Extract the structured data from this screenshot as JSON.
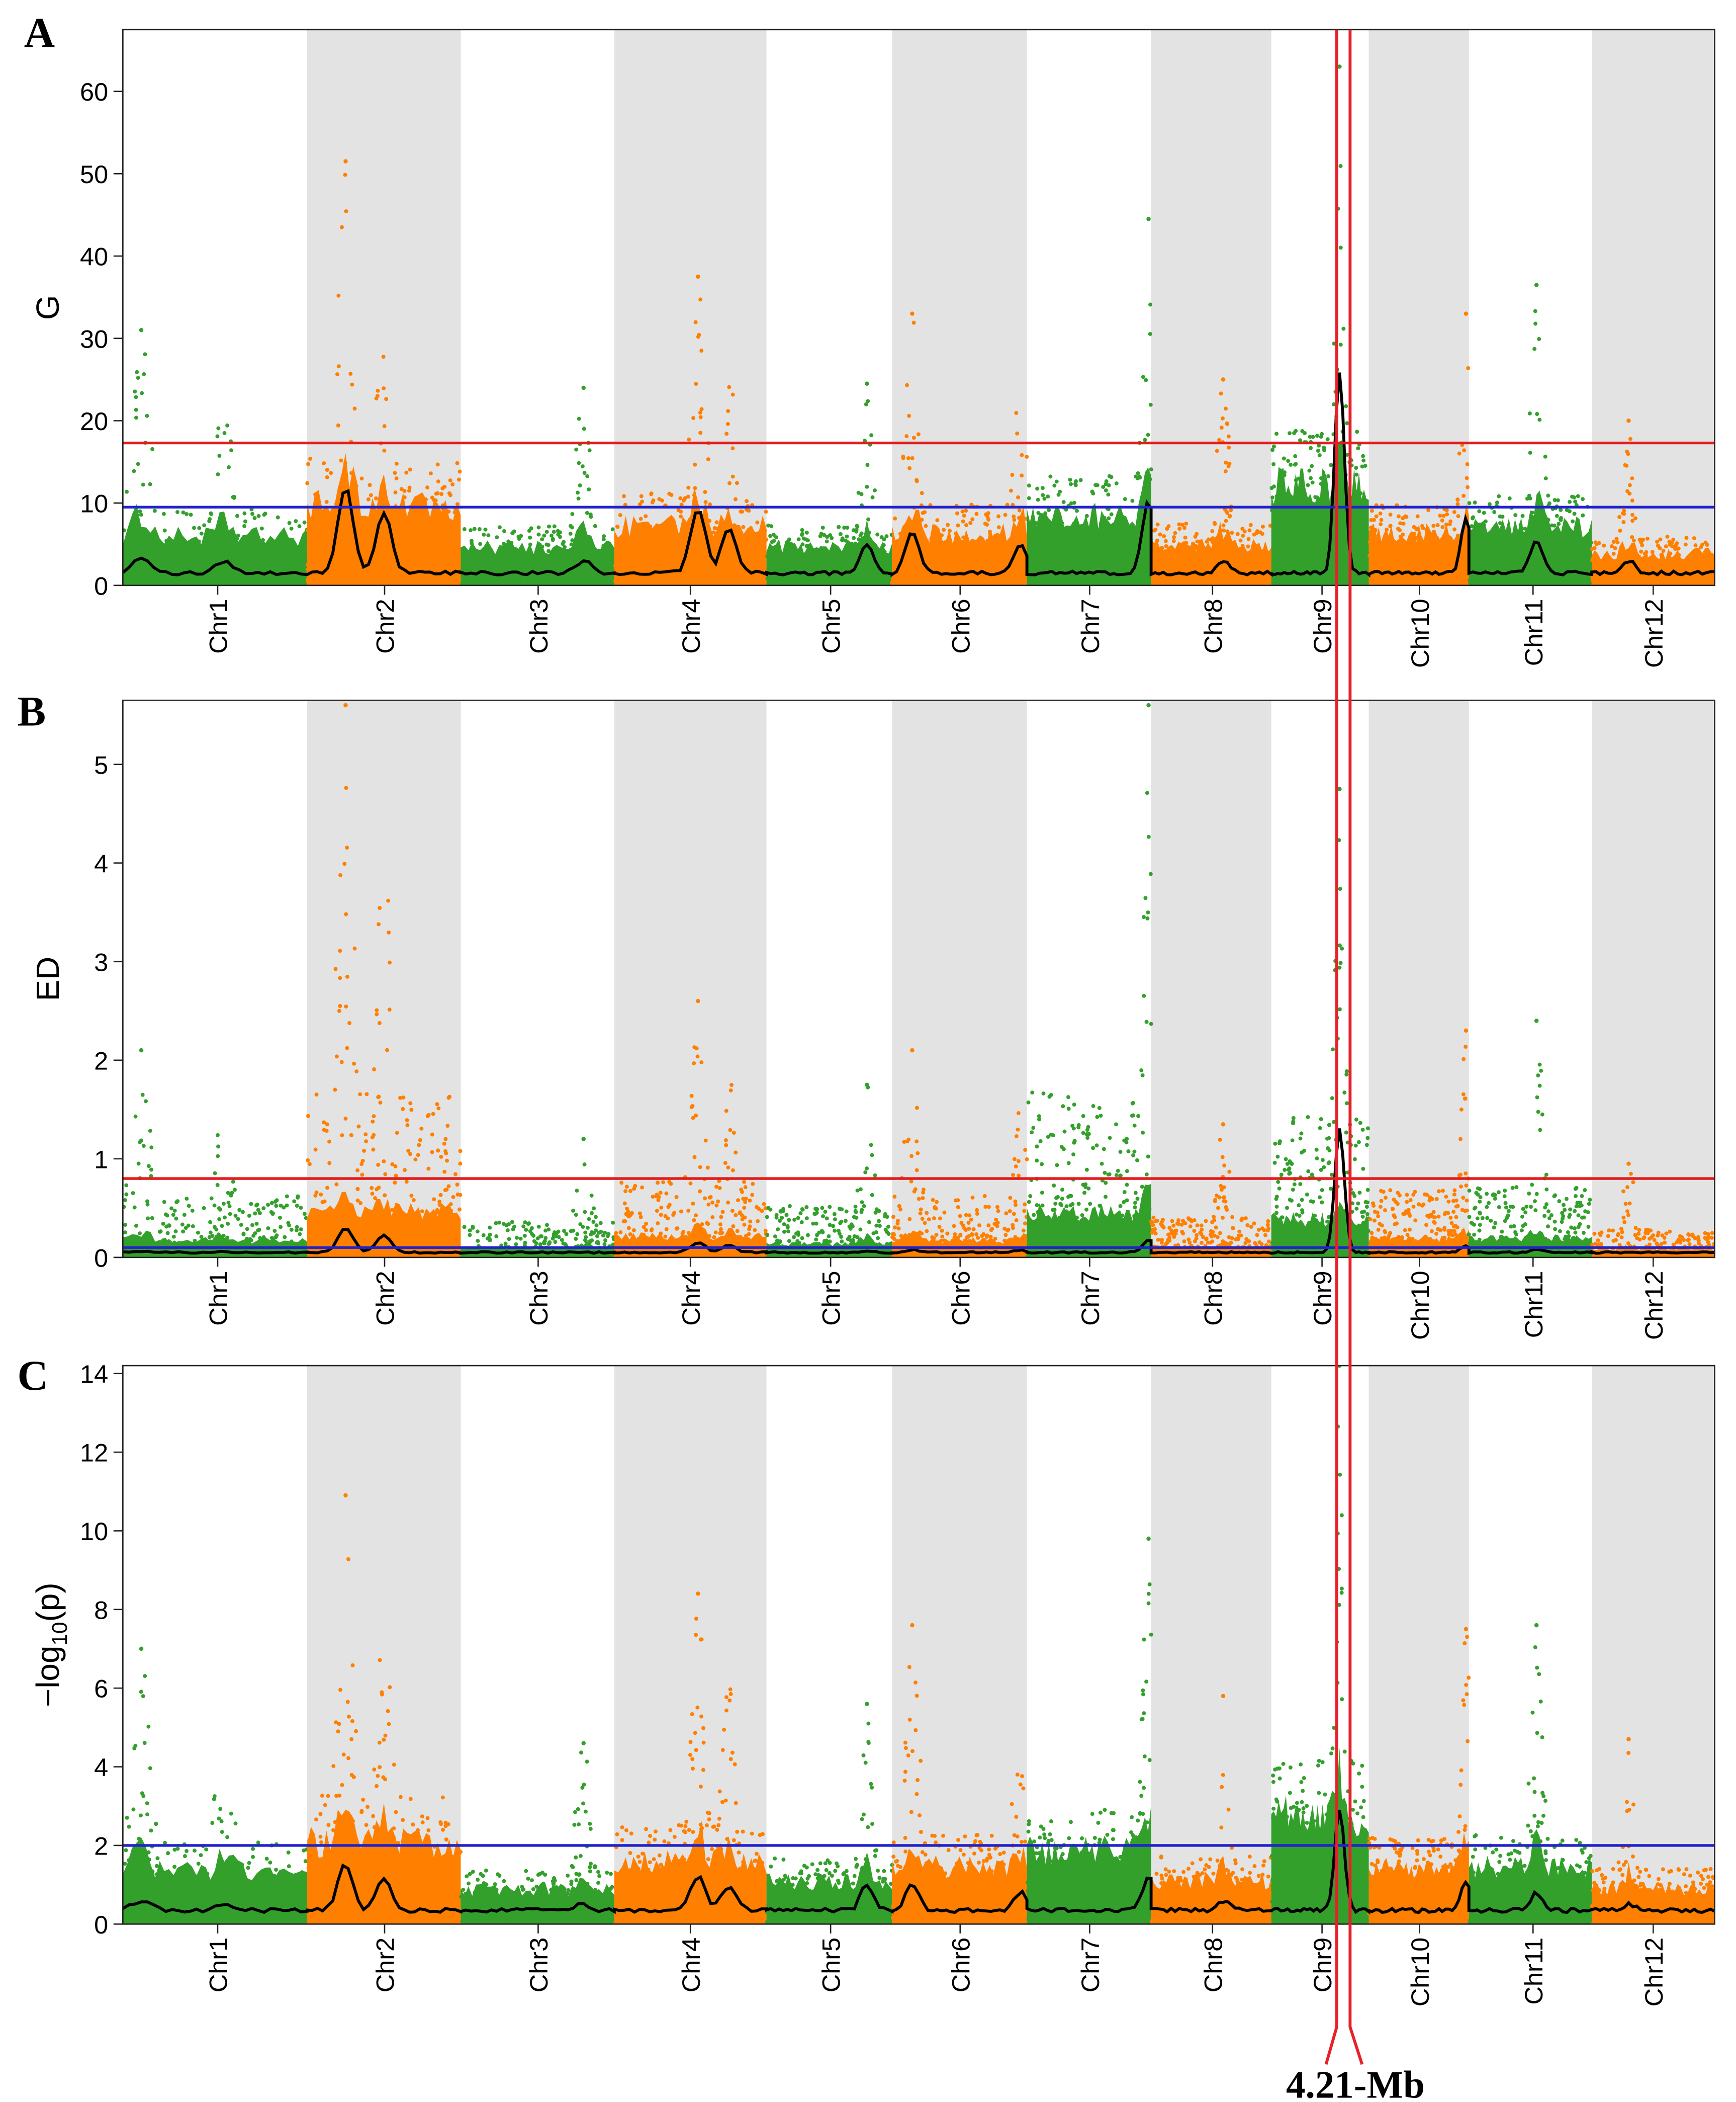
{
  "chart_data": [
    {
      "type": "scatter",
      "panel_label": "A",
      "ylabel": "G",
      "ylim": [
        0,
        67.5
      ],
      "yticks": [
        0,
        10,
        20,
        30,
        40,
        50,
        60
      ],
      "thresholds": [
        {
          "color": "#e41a1c",
          "value": 17.3
        },
        {
          "color": "#2222cc",
          "value": 9.5
        }
      ],
      "chromosomes": [
        "Chr1",
        "Chr2",
        "Chr3",
        "Chr4",
        "Chr5",
        "Chr6",
        "Chr7",
        "Chr8",
        "Chr9",
        "Chr10",
        "Chr11",
        "Chr12"
      ],
      "max_values": [
        31,
        51.5,
        24,
        37.5,
        24.5,
        33,
        44.5,
        25,
        63,
        33,
        36.5,
        20
      ],
      "smoothed_baseline": 1.5,
      "smoothed_peaks": [
        3.5,
        12,
        3,
        9.3,
        5,
        6.5,
        10.2,
        3,
        26,
        8,
        5.5,
        3
      ]
    },
    {
      "type": "scatter",
      "panel_label": "B",
      "ylabel": "ED",
      "ylim": [
        0,
        5.65
      ],
      "yticks": [
        0,
        1,
        2,
        3,
        4,
        5
      ],
      "thresholds": [
        {
          "color": "#e41a1c",
          "value": 0.8
        },
        {
          "color": "#2222cc",
          "value": 0.1
        }
      ],
      "chromosomes": [
        "Chr1",
        "Chr2",
        "Chr3",
        "Chr4",
        "Chr5",
        "Chr6",
        "Chr7",
        "Chr8",
        "Chr9",
        "Chr10",
        "Chr11",
        "Chr12"
      ],
      "max_values": [
        2.1,
        5.6,
        1.2,
        2.6,
        1.75,
        2.1,
        5.6,
        1.35,
        4.75,
        2.3,
        2.4,
        0.95
      ],
      "smoothed_baseline": 0.05,
      "smoothed_peaks": [
        0.06,
        0.3,
        0.05,
        0.15,
        0.06,
        0.08,
        0.18,
        0.05,
        1.3,
        0.12,
        0.08,
        0.05
      ]
    },
    {
      "type": "scatter",
      "panel_label": "C",
      "ylabel": "−log10(p)",
      "ylim": [
        0,
        14.2
      ],
      "yticks": [
        0,
        2,
        4,
        6,
        8,
        10,
        12,
        14
      ],
      "thresholds": [
        {
          "color": "#2222cc",
          "value": 2
        }
      ],
      "chromosomes": [
        "Chr1",
        "Chr2",
        "Chr3",
        "Chr4",
        "Chr5",
        "Chr6",
        "Chr7",
        "Chr8",
        "Chr9",
        "Chr10",
        "Chr11",
        "Chr12"
      ],
      "max_values": [
        7,
        10.9,
        4.6,
        8.4,
        5.6,
        7.6,
        9.8,
        5.8,
        14.2,
        7.5,
        7.6,
        4.7
      ],
      "smoothed_baseline": 0.35,
      "smoothed_peaks": [
        0.6,
        1.5,
        0.5,
        1.2,
        1,
        1,
        1.2,
        0.6,
        2.9,
        1.1,
        0.8,
        0.5
      ]
    }
  ],
  "colors": {
    "odd_chromosome": "#33a02c",
    "even_chromosome": "#ff7f00",
    "even_shading": "#e3e3e3",
    "smoothed_line": "#000000",
    "region_marker": "#e8202a"
  },
  "annotation": {
    "label": "4.21-Mb"
  }
}
